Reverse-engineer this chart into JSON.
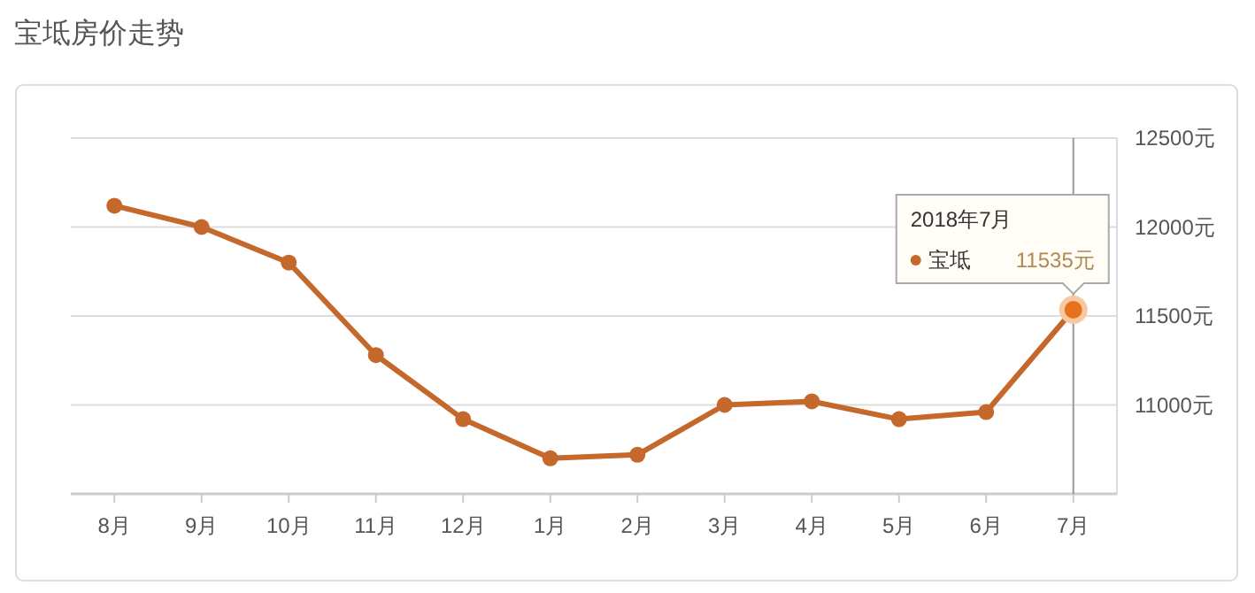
{
  "chart_data": {
    "type": "line",
    "title": "宝坻房价走势",
    "categories": [
      "8月",
      "9月",
      "10月",
      "11月",
      "12月",
      "1月",
      "2月",
      "3月",
      "4月",
      "5月",
      "6月",
      "7月"
    ],
    "series": [
      {
        "name": "宝坻",
        "color": "#c4682c",
        "values": [
          12120,
          12000,
          11800,
          11280,
          10920,
          10700,
          10720,
          11000,
          11020,
          10920,
          10960,
          11535
        ],
        "value_labels": [
          null,
          null,
          null,
          null,
          null,
          null,
          null,
          null,
          null,
          null,
          null,
          "11535元"
        ]
      }
    ],
    "ylim": [
      10500,
      12500
    ],
    "yticks": [
      {
        "value": 10500,
        "label": null
      },
      {
        "value": 11000,
        "label": "11000元"
      },
      {
        "value": 11500,
        "label": "11500元"
      },
      {
        "value": 12000,
        "label": "12000元"
      },
      {
        "value": 12500,
        "label": "12500元"
      }
    ],
    "grid": "y",
    "marker": "circle",
    "line_style": "solid",
    "legend": "top right",
    "annotations": [
      "2018年7月"
    ],
    "ref_lines": [
      {
        "axis": "x",
        "value": "7月",
        "color": "#999999"
      }
    ]
  }
}
